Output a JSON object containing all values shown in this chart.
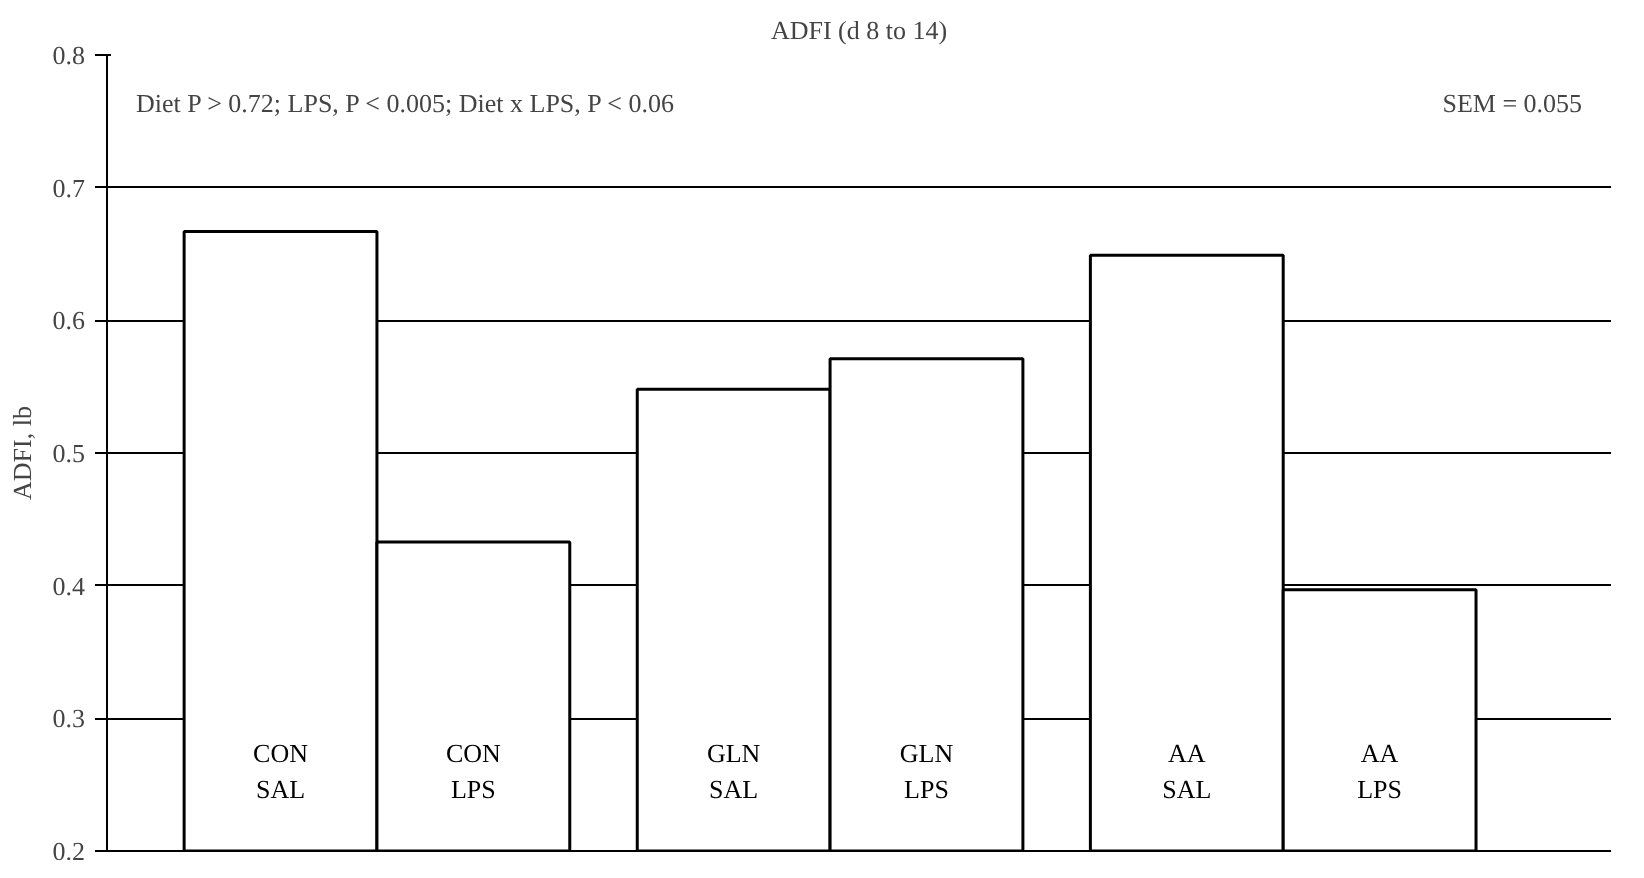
{
  "chart_data": {
    "type": "bar",
    "title": "ADFI (d 8 to 14)",
    "ylabel": "ADFI, lb",
    "categories": [
      "CON\nSAL",
      "CON\nLPS",
      "GLN\nSAL",
      "GLN\nLPS",
      "AA\nSAL",
      "AA\nLPS"
    ],
    "values": [
      0.667,
      0.433,
      0.548,
      0.571,
      0.649,
      0.397
    ],
    "color": "#ffffff",
    "ylim": [
      0.2,
      0.8
    ],
    "yticks": [
      0.2,
      0.3,
      0.4,
      0.5,
      0.6,
      0.7,
      0.8
    ],
    "grid": "y",
    "annotations": [
      "Diet P > 0.72; LPS, P < 0.005; Diet x LPS, P < 0.06",
      "SEM = 0.055"
    ]
  }
}
